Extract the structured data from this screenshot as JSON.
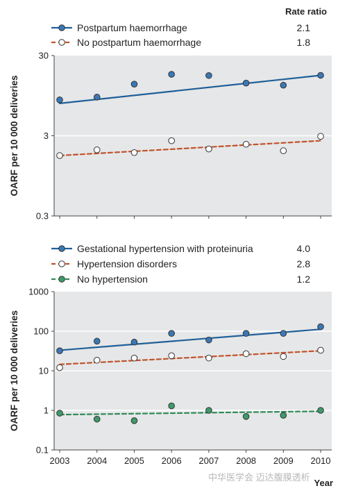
{
  "chart_data": [
    {
      "type": "line",
      "ylabel": "OARF per 10 000 deliveries",
      "yscale": "log",
      "ylim": [
        0.3,
        30
      ],
      "yticks": [
        {
          "value": 30,
          "label": "30"
        },
        {
          "value": 3,
          "label": "3"
        },
        {
          "value": 0.3,
          "label": "0.3"
        }
      ],
      "x": [
        2003,
        2004,
        2005,
        2006,
        2007,
        2008,
        2009,
        2010
      ],
      "rate_ratio_header": "Rate ratio",
      "series": [
        {
          "name": "Postpartum haemorrhage",
          "rate_ratio": "2.1",
          "color": "#1f5f99",
          "marker_fill": "#3a78b5",
          "line_style": "solid",
          "points": [
            8.4,
            9.1,
            13.2,
            17.5,
            16.9,
            13.6,
            12.8,
            17.0
          ],
          "trend": [
            7.6,
            17.0
          ]
        },
        {
          "name": "No postpartum haemorrhage",
          "rate_ratio": "1.8",
          "color": "#c0532b",
          "marker_fill": "#ffffff",
          "line_style": "dashed",
          "points": [
            1.7,
            2.0,
            1.85,
            2.6,
            2.05,
            2.35,
            1.95,
            2.95
          ],
          "trend": [
            1.7,
            2.6
          ]
        }
      ]
    },
    {
      "type": "line",
      "ylabel": "OARF per 10 000 deliveries",
      "xlabel": "Year",
      "yscale": "log",
      "ylim": [
        0.1,
        1000
      ],
      "yticks": [
        {
          "value": 1000,
          "label": "1000"
        },
        {
          "value": 100,
          "label": "100"
        },
        {
          "value": 10,
          "label": "10"
        },
        {
          "value": 1,
          "label": "1"
        },
        {
          "value": 0.1,
          "label": "0.1"
        }
      ],
      "x": [
        2003,
        2004,
        2005,
        2006,
        2007,
        2008,
        2009,
        2010
      ],
      "xticks": [
        "2003",
        "2004",
        "2005",
        "2006",
        "2007",
        "2008",
        "2009",
        "2010"
      ],
      "series": [
        {
          "name": "Gestational hypertension with proteinuria",
          "rate_ratio": "4.0",
          "color": "#1f5f99",
          "marker_fill": "#3a78b5",
          "line_style": "solid",
          "points": [
            32,
            56,
            53,
            88,
            60,
            88,
            88,
            130
          ],
          "trend": [
            33,
            112
          ]
        },
        {
          "name": "Hypertension disorders",
          "rate_ratio": "2.8",
          "color": "#c0532b",
          "marker_fill": "#ffffff",
          "line_style": "dashed",
          "points": [
            12,
            18.5,
            21,
            24,
            21,
            27,
            23,
            33
          ],
          "trend": [
            14.5,
            32
          ]
        },
        {
          "name": "No hypertension",
          "rate_ratio": "1.2",
          "color": "#2e8b57",
          "marker_fill": "#3f9a6a",
          "line_style": "dashed",
          "points": [
            0.85,
            0.6,
            0.55,
            1.3,
            1.0,
            0.7,
            0.75,
            1.0
          ],
          "trend": [
            0.78,
            0.95
          ]
        }
      ]
    }
  ],
  "watermark": "中华医学会 迈达腹膜透析"
}
